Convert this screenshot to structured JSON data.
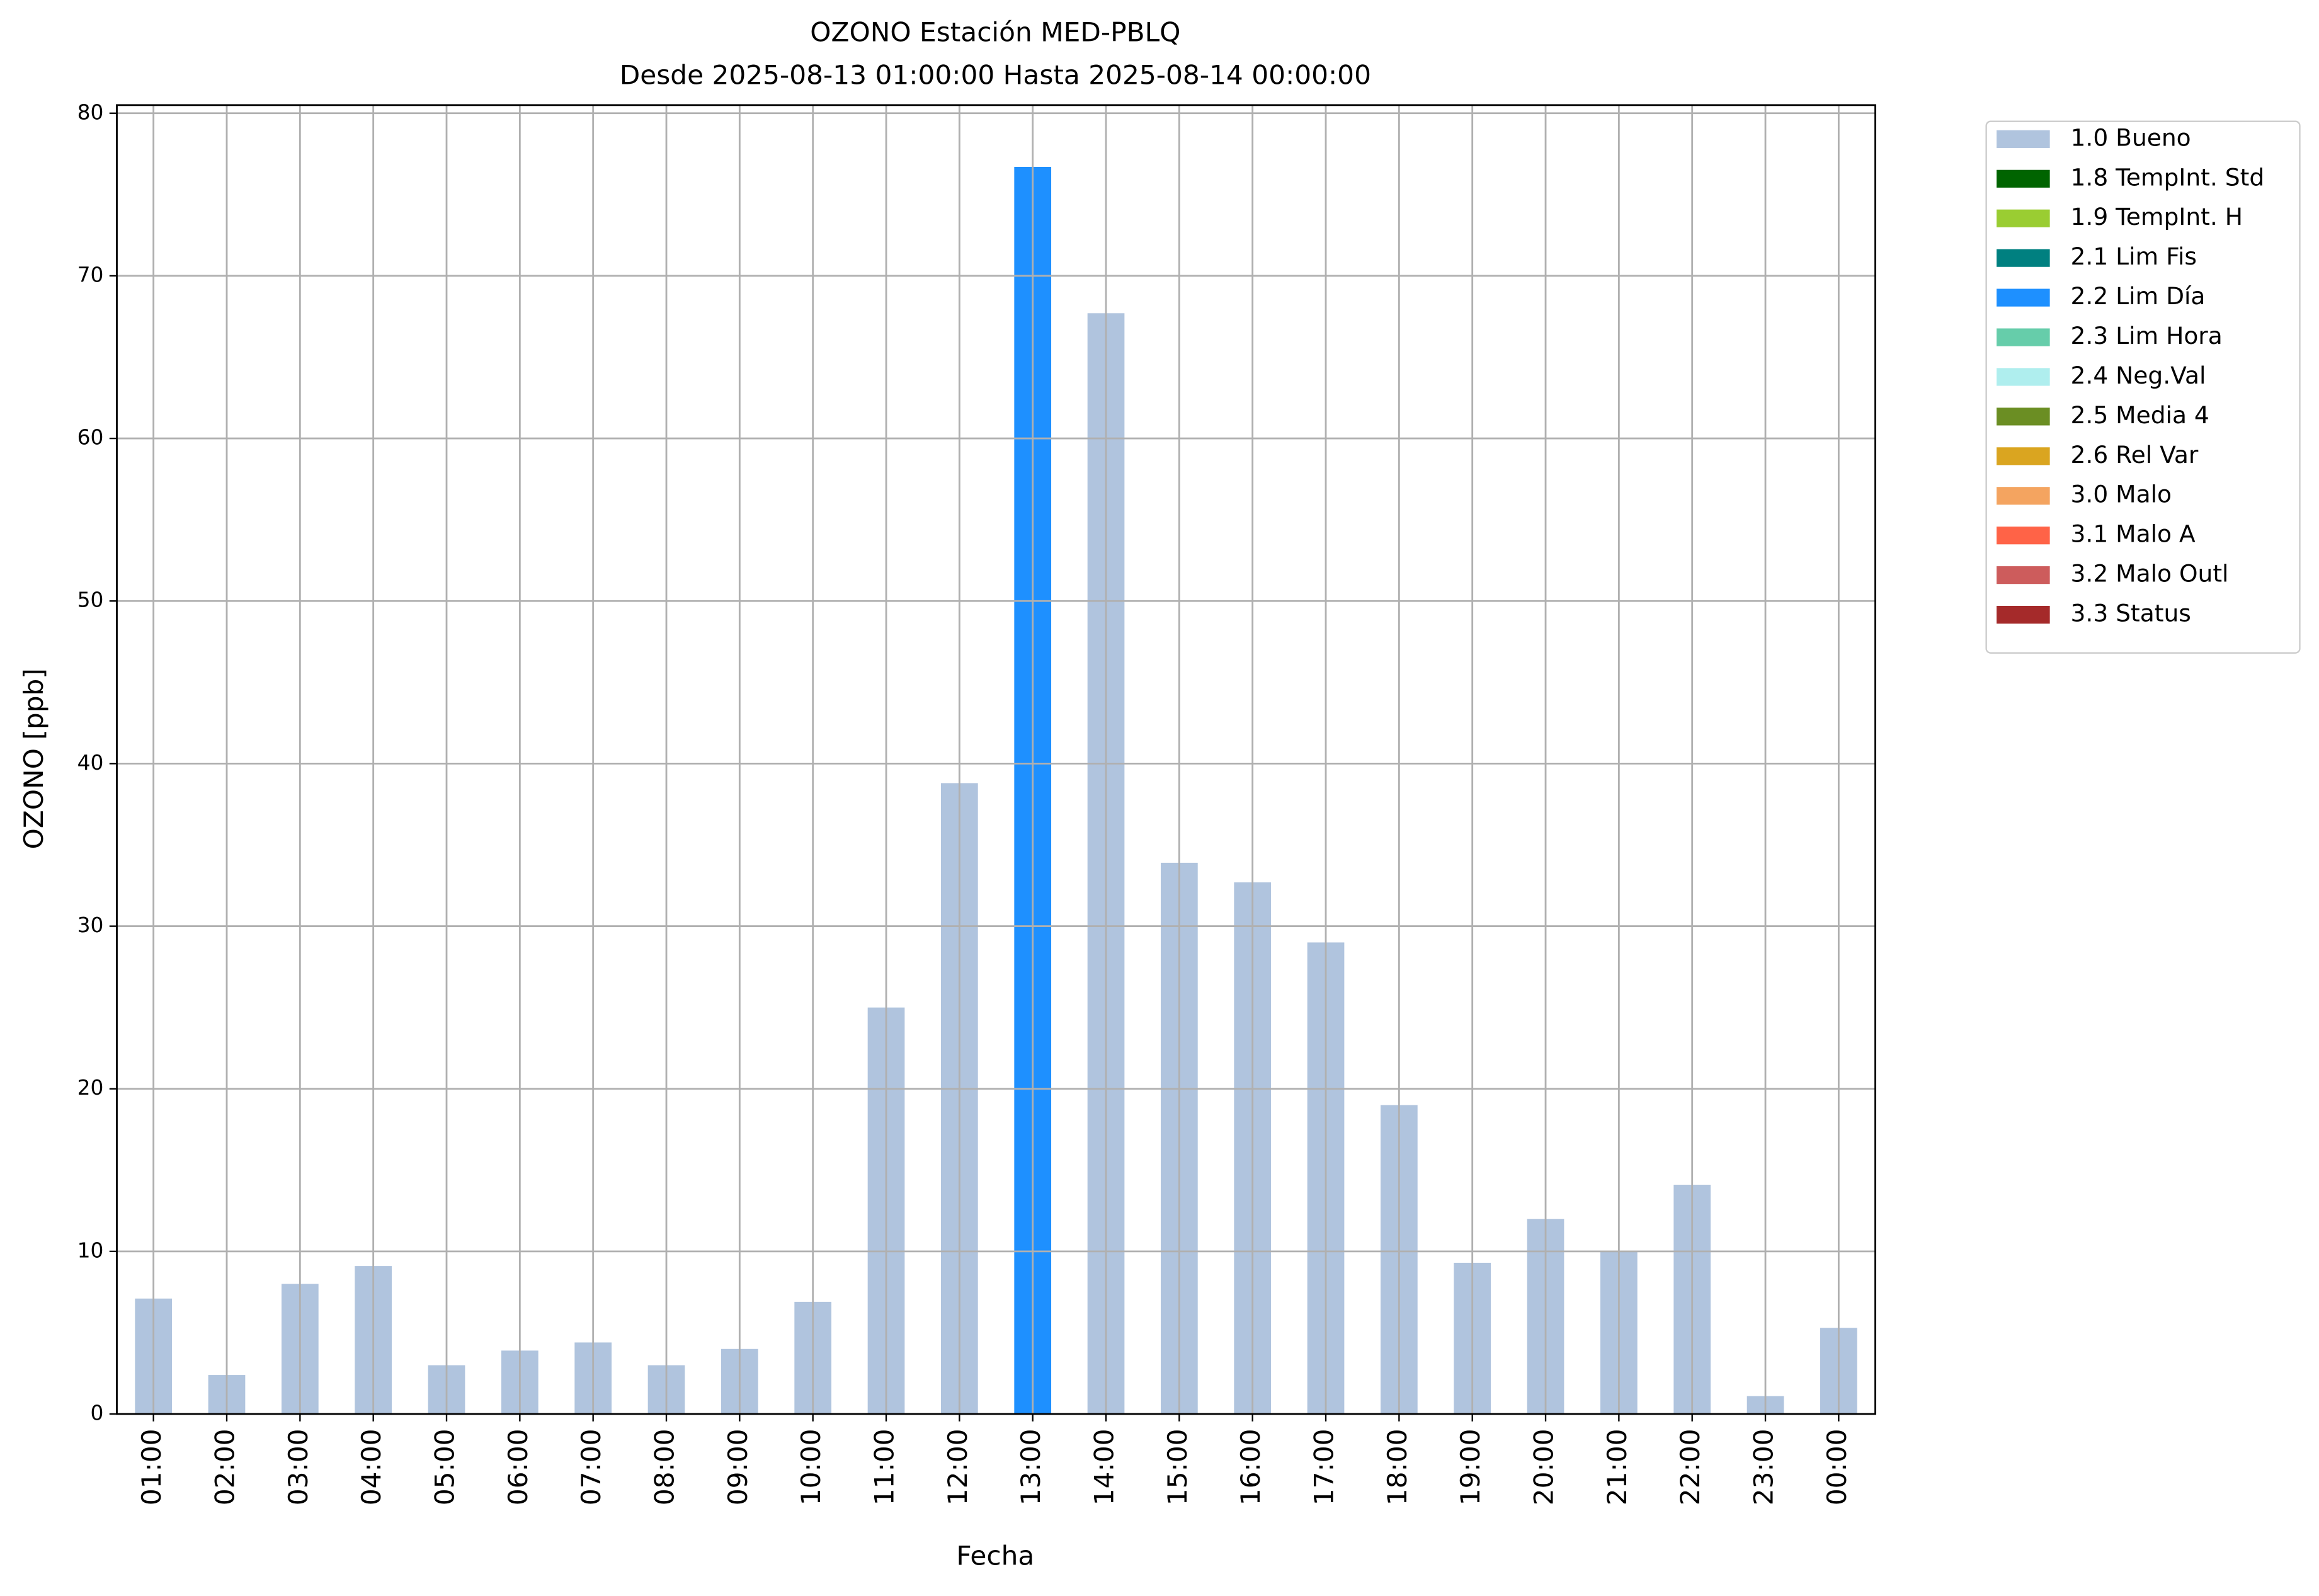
{
  "chart_data": {
    "type": "bar",
    "stacked": true,
    "title": "OZONO Estación MED-PBLQ",
    "subtitle": "Desde 2025-08-13 01:00:00 Hasta 2025-08-14 00:00:00",
    "x_label": "Fecha",
    "y_label": "OZONO [ppb]",
    "categories": [
      "01:00",
      "02:00",
      "03:00",
      "04:00",
      "05:00",
      "06:00",
      "07:00",
      "08:00",
      "09:00",
      "10:00",
      "11:00",
      "12:00",
      "13:00",
      "14:00",
      "15:00",
      "16:00",
      "17:00",
      "18:00",
      "19:00",
      "20:00",
      "21:00",
      "22:00",
      "23:00",
      "00:00"
    ],
    "series": [
      {
        "name": "1.0 Bueno",
        "color": "#b0c4de",
        "values": [
          7.1,
          2.4,
          8.0,
          9.1,
          3.0,
          3.9,
          4.4,
          3.0,
          4.0,
          6.9,
          25.0,
          38.8,
          null,
          67.7,
          33.9,
          32.7,
          29.0,
          19.0,
          9.3,
          12.0,
          10.0,
          14.1,
          1.1,
          5.3
        ]
      },
      {
        "name": "1.8 TempInt. Std",
        "color": "#006400",
        "values": [
          null,
          null,
          null,
          null,
          null,
          null,
          null,
          null,
          null,
          null,
          null,
          null,
          null,
          null,
          null,
          null,
          null,
          null,
          null,
          null,
          null,
          null,
          null,
          null
        ]
      },
      {
        "name": "1.9 TempInt. H",
        "color": "#9acd32",
        "values": [
          null,
          null,
          null,
          null,
          null,
          null,
          null,
          null,
          null,
          null,
          null,
          null,
          null,
          null,
          null,
          null,
          null,
          null,
          null,
          null,
          null,
          null,
          null,
          null
        ]
      },
      {
        "name": "2.1 Lim Fis",
        "color": "#008080",
        "values": [
          null,
          null,
          null,
          null,
          null,
          null,
          null,
          null,
          null,
          null,
          null,
          null,
          null,
          null,
          null,
          null,
          null,
          null,
          null,
          null,
          null,
          null,
          null,
          null
        ]
      },
      {
        "name": "2.2 Lim Día",
        "color": "#1e90ff",
        "values": [
          null,
          null,
          null,
          null,
          null,
          null,
          null,
          null,
          null,
          null,
          null,
          null,
          76.7,
          null,
          null,
          null,
          null,
          null,
          null,
          null,
          null,
          null,
          null,
          null
        ]
      },
      {
        "name": "2.3 Lim Hora",
        "color": "#66cdaa",
        "values": [
          null,
          null,
          null,
          null,
          null,
          null,
          null,
          null,
          null,
          null,
          null,
          null,
          null,
          null,
          null,
          null,
          null,
          null,
          null,
          null,
          null,
          null,
          null,
          null
        ]
      },
      {
        "name": "2.4 Neg.Val",
        "color": "#afeeee",
        "values": [
          null,
          null,
          null,
          null,
          null,
          null,
          null,
          null,
          null,
          null,
          null,
          null,
          null,
          null,
          null,
          null,
          null,
          null,
          null,
          null,
          null,
          null,
          null,
          null
        ]
      },
      {
        "name": "2.5 Media 4",
        "color": "#6b8e23",
        "values": [
          null,
          null,
          null,
          null,
          null,
          null,
          null,
          null,
          null,
          null,
          null,
          null,
          null,
          null,
          null,
          null,
          null,
          null,
          null,
          null,
          null,
          null,
          null,
          null
        ]
      },
      {
        "name": "2.6 Rel Var",
        "color": "#daa520",
        "values": [
          null,
          null,
          null,
          null,
          null,
          null,
          null,
          null,
          null,
          null,
          null,
          null,
          null,
          null,
          null,
          null,
          null,
          null,
          null,
          null,
          null,
          null,
          null,
          null
        ]
      },
      {
        "name": "3.0 Malo",
        "color": "#f4a460",
        "values": [
          null,
          null,
          null,
          null,
          null,
          null,
          null,
          null,
          null,
          null,
          null,
          null,
          null,
          null,
          null,
          null,
          null,
          null,
          null,
          null,
          null,
          null,
          null,
          null
        ]
      },
      {
        "name": "3.1 Malo A",
        "color": "#ff6347",
        "values": [
          null,
          null,
          null,
          null,
          null,
          null,
          null,
          null,
          null,
          null,
          null,
          null,
          null,
          null,
          null,
          null,
          null,
          null,
          null,
          null,
          null,
          null,
          null,
          null
        ]
      },
      {
        "name": "3.2 Malo Outl",
        "color": "#cd5c5c",
        "values": [
          null,
          null,
          null,
          null,
          null,
          null,
          null,
          null,
          null,
          null,
          null,
          null,
          null,
          null,
          null,
          null,
          null,
          null,
          null,
          null,
          null,
          null,
          null,
          null
        ]
      },
      {
        "name": "3.3 Status",
        "color": "#a52a2a",
        "values": [
          null,
          null,
          null,
          null,
          null,
          null,
          null,
          null,
          null,
          null,
          null,
          null,
          null,
          null,
          null,
          null,
          null,
          null,
          null,
          null,
          null,
          null,
          null,
          null
        ]
      }
    ],
    "ylim": [
      0,
      80.5
    ],
    "yticks": [
      0,
      10,
      20,
      30,
      40,
      50,
      60,
      70,
      80
    ],
    "grid": true,
    "legend": "outside-right"
  }
}
